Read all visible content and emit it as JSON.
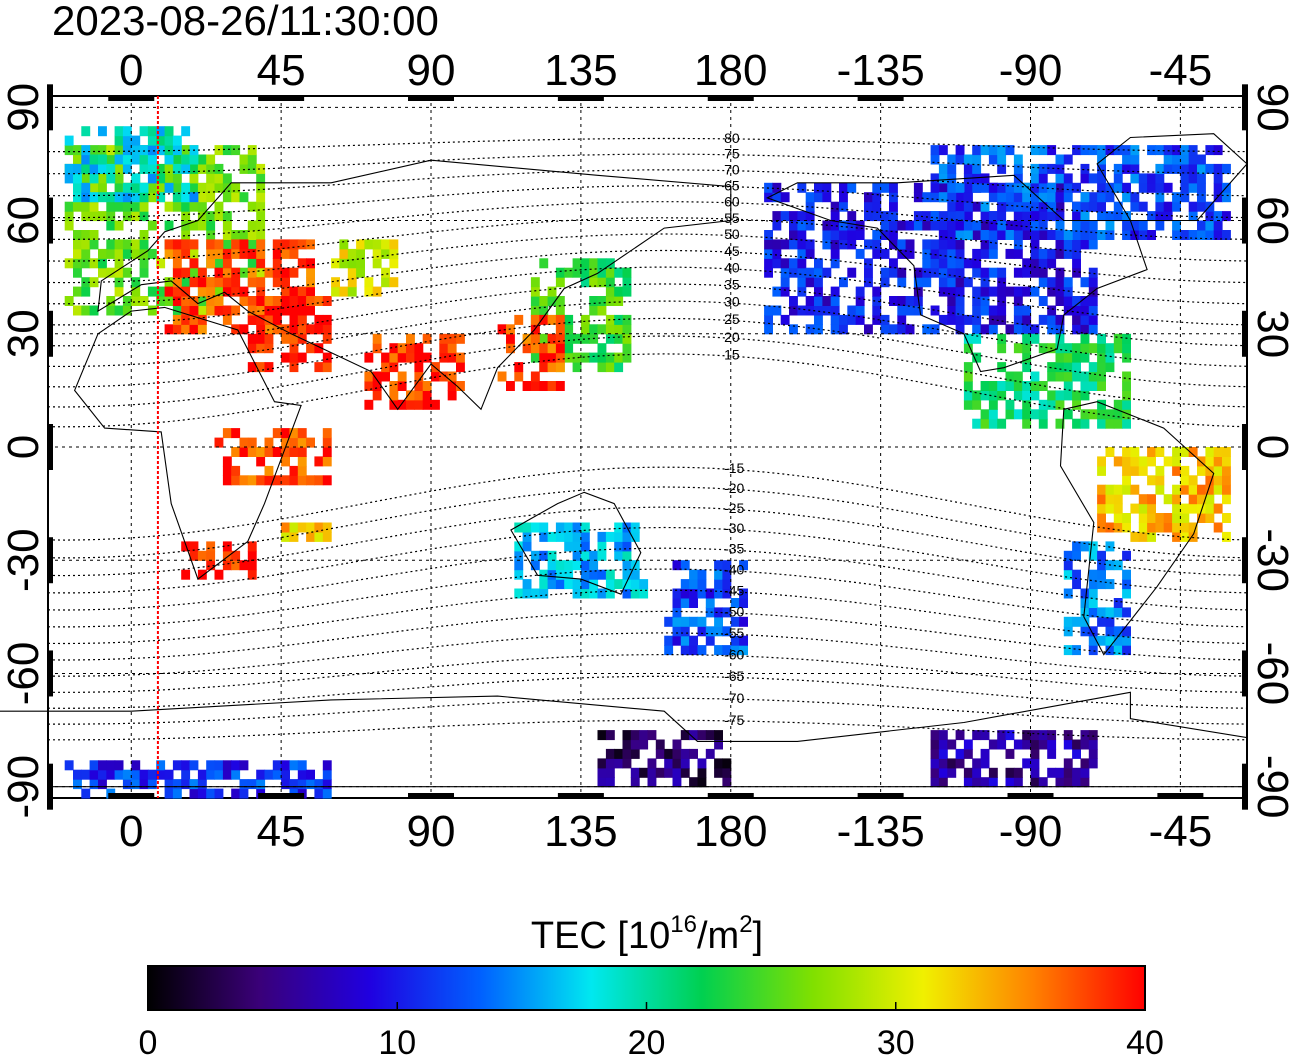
{
  "timestamp": "2023-08-26/11:30:00",
  "map": {
    "lon_ticks": [
      {
        "lon": 0,
        "label": "0"
      },
      {
        "lon": 45,
        "label": "45"
      },
      {
        "lon": 90,
        "label": "90"
      },
      {
        "lon": 135,
        "label": "135"
      },
      {
        "lon": 180,
        "label": "180"
      },
      {
        "lon": 225,
        "label": "-135"
      },
      {
        "lon": 270,
        "label": "-90"
      },
      {
        "lon": 315,
        "label": "-45"
      }
    ],
    "lat_ticks": [
      {
        "lat": 90,
        "label": "90"
      },
      {
        "lat": 60,
        "label": "60"
      },
      {
        "lat": 30,
        "label": "30"
      },
      {
        "lat": 0,
        "label": "0"
      },
      {
        "lat": -30,
        "label": "-30"
      },
      {
        "lat": -60,
        "label": "-60"
      },
      {
        "lat": -90,
        "label": "-90"
      }
    ],
    "lon_range": [
      -25,
      335
    ],
    "lat_range": [
      -93,
      93
    ],
    "grid": true,
    "marker_meridian_lon": 8,
    "marker_color": "#ff0000",
    "contour_labels": [
      "80",
      "75",
      "70",
      "65",
      "60",
      "55",
      "50",
      "45",
      "40",
      "35",
      "30",
      "25",
      "20",
      "15",
      "-15",
      "-20",
      "-25",
      "-30",
      "-35",
      "-40",
      "-45",
      "-50",
      "-55",
      "-60",
      "-65",
      "-70",
      "-75"
    ],
    "contour_label_lats": [
      80,
      75,
      70,
      65,
      60,
      55,
      50,
      45,
      40,
      35,
      30,
      25,
      20,
      15,
      -15,
      -20,
      -25,
      -30,
      -35,
      -40,
      -45,
      -50,
      -55,
      -60,
      -65,
      -70,
      -75
    ],
    "tec_regions": [
      {
        "name": "europe-north",
        "lon": [
          -20,
          40
        ],
        "lat": [
          35,
          80
        ],
        "tec": 26
      },
      {
        "name": "europe-south",
        "lon": [
          10,
          55
        ],
        "lat": [
          30,
          55
        ],
        "tec": 38
      },
      {
        "name": "middle-east",
        "lon": [
          35,
          60
        ],
        "lat": [
          20,
          40
        ],
        "tec": 39
      },
      {
        "name": "central-asia",
        "lon": [
          60,
          80
        ],
        "lat": [
          40,
          55
        ],
        "tec": 30
      },
      {
        "name": "india",
        "lon": [
          70,
          100
        ],
        "lat": [
          10,
          30
        ],
        "tec": 39
      },
      {
        "name": "east-asia",
        "lon": [
          120,
          150
        ],
        "lat": [
          20,
          50
        ],
        "tec": 24
      },
      {
        "name": "china-south",
        "lon": [
          110,
          130
        ],
        "lat": [
          15,
          35
        ],
        "tec": 38
      },
      {
        "name": "africa-east",
        "lon": [
          25,
          60
        ],
        "lat": [
          -10,
          5
        ],
        "tec": 38
      },
      {
        "name": "south-africa",
        "lon": [
          15,
          40
        ],
        "lat": [
          -35,
          -25
        ],
        "tec": 39
      },
      {
        "name": "indian-ocean",
        "lon": [
          45,
          60
        ],
        "lat": [
          -25,
          -20
        ],
        "tec": 33
      },
      {
        "name": "australia",
        "lon": [
          115,
          155
        ],
        "lat": [
          -40,
          -20
        ],
        "tec": 16
      },
      {
        "name": "new-zealand",
        "lon": [
          160,
          185
        ],
        "lat": [
          -55,
          -30
        ],
        "tec": 12
      },
      {
        "name": "north-america",
        "lon": [
          190,
          290
        ],
        "lat": [
          30,
          70
        ],
        "tec": 10
      },
      {
        "name": "canada",
        "lon": [
          240,
          330
        ],
        "lat": [
          55,
          80
        ],
        "tec": 12
      },
      {
        "name": "central-america",
        "lon": [
          250,
          300
        ],
        "lat": [
          5,
          30
        ],
        "tec": 22
      },
      {
        "name": "south-america-north",
        "lon": [
          290,
          330
        ],
        "lat": [
          -25,
          0
        ],
        "tec": 33
      },
      {
        "name": "south-america-south",
        "lon": [
          280,
          300
        ],
        "lat": [
          -55,
          -25
        ],
        "tec": 14
      },
      {
        "name": "antarctic",
        "lon": [
          140,
          180
        ],
        "lat": [
          -90,
          -75
        ],
        "tec": 4
      },
      {
        "name": "antarctic-pac",
        "lon": [
          240,
          290
        ],
        "lat": [
          -90,
          -75
        ],
        "tec": 6
      },
      {
        "name": "south-polar",
        "lon": [
          -20,
          60
        ],
        "lat": [
          -93,
          -85
        ],
        "tec": 11
      },
      {
        "name": "arctic",
        "lon": [
          -20,
          20
        ],
        "lat": [
          65,
          85
        ],
        "tec": 18
      }
    ]
  },
  "colorbar": {
    "title": "TEC  [10",
    "title_exp": "16",
    "title_unit": "/m",
    "title_unit_exp": "2",
    "title_close": "]",
    "min": 0,
    "max": 40,
    "ticks": [
      {
        "value": 0,
        "label": "0"
      },
      {
        "value": 10,
        "label": "10"
      },
      {
        "value": 20,
        "label": "20"
      },
      {
        "value": 30,
        "label": "30"
      },
      {
        "value": 40,
        "label": "40"
      }
    ],
    "colormap": [
      "#000000",
      "#3a0078",
      "#2000e0",
      "#0060ff",
      "#00e8f0",
      "#00d050",
      "#80e000",
      "#f0f000",
      "#ff8000",
      "#ff0000"
    ]
  }
}
